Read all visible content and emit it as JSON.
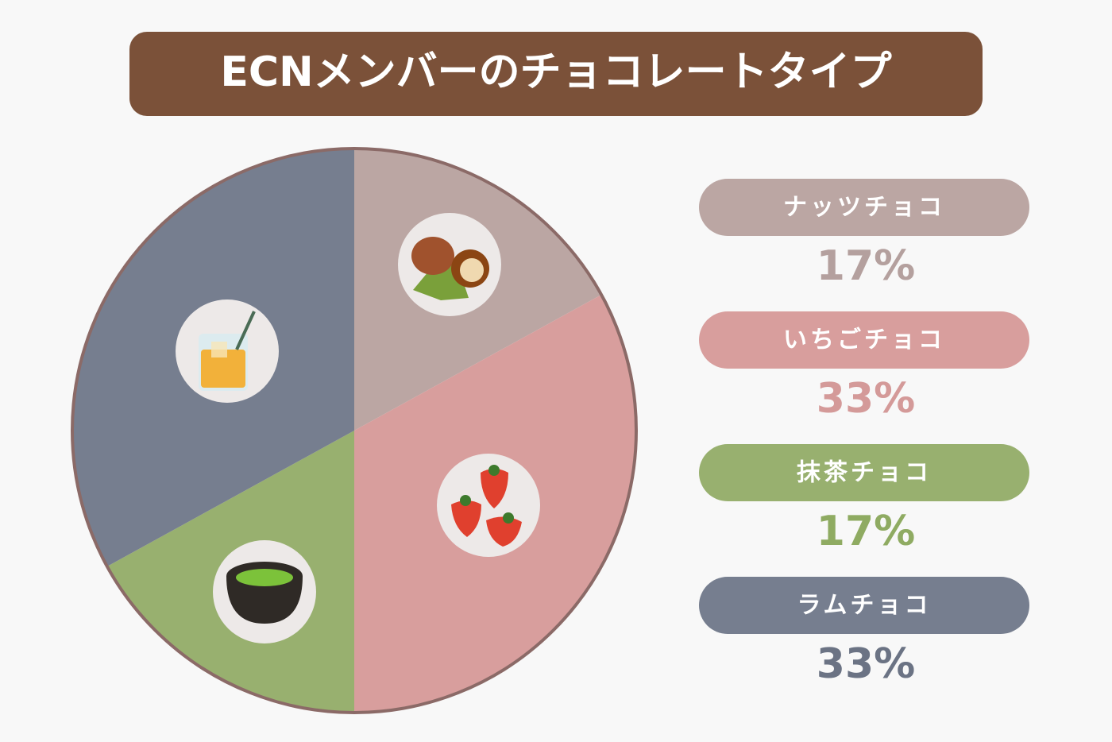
{
  "chart_data": {
    "type": "pie",
    "title": "ECNメンバーのチョコレートタイプ",
    "categories": [
      "ナッツチョコ",
      "いちごチョコ",
      "抹茶チョコ",
      "ラムチョコ"
    ],
    "values": [
      17,
      33,
      17,
      33
    ],
    "value_labels": [
      "17%",
      "33%",
      "17%",
      "33%"
    ],
    "colors": [
      "#bba6a3",
      "#d89e9d",
      "#98b06f",
      "#767e8f"
    ]
  }
}
